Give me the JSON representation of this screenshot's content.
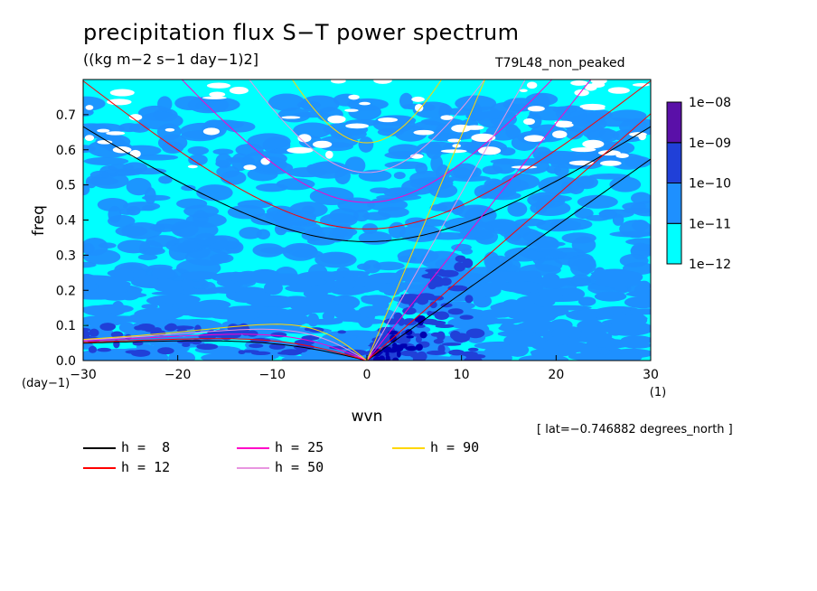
{
  "title": "precipitation flux S−T power spectrum",
  "subtitle": "((kg m−2 s−1 day−1)2]",
  "run_id": "T79L48_non_peaked",
  "note": "[ lat=−0.746882 degrees_north ]",
  "chart_data": {
    "type": "heatmap",
    "title": "precipitation flux S−T power spectrum",
    "xlabel": "wvn",
    "xunit": "(1)",
    "ylabel": "freq",
    "yunit": "(day−1)",
    "xlim": [
      -30,
      30
    ],
    "ylim": [
      0,
      0.8
    ],
    "x_ticks": [
      -30,
      -20,
      -10,
      0,
      10,
      20,
      30
    ],
    "x_tick_labels": [
      "−30",
      "−20",
      "−10",
      "0",
      "10",
      "20",
      "30"
    ],
    "y_ticks": [
      0.0,
      0.1,
      0.2,
      0.3,
      0.4,
      0.5,
      0.6,
      0.7
    ],
    "y_tick_labels": [
      "0.0",
      "0.1",
      "0.2",
      "0.3",
      "0.4",
      "0.5",
      "0.6",
      "0.7"
    ],
    "colorbar": {
      "scale": "log",
      "levels": [
        "1e−12",
        "1e−11",
        "1e−10",
        "1e−09",
        "1e−08"
      ],
      "colors": [
        "#00ffff",
        "#1e90ff",
        "#2040d8",
        "#0000b0",
        "#5a10a8"
      ]
    },
    "dispersion_curves": [
      {
        "label": "h =  8",
        "h": 8,
        "color": "#000000"
      },
      {
        "label": "h = 12",
        "h": 12,
        "color": "#ff0000"
      },
      {
        "label": "h = 25",
        "h": 25,
        "color": "#ff00c8"
      },
      {
        "label": "h = 50",
        "h": 50,
        "color": "#e896e0"
      },
      {
        "label": "h = 90",
        "h": 90,
        "color": "#ffd700"
      }
    ]
  }
}
